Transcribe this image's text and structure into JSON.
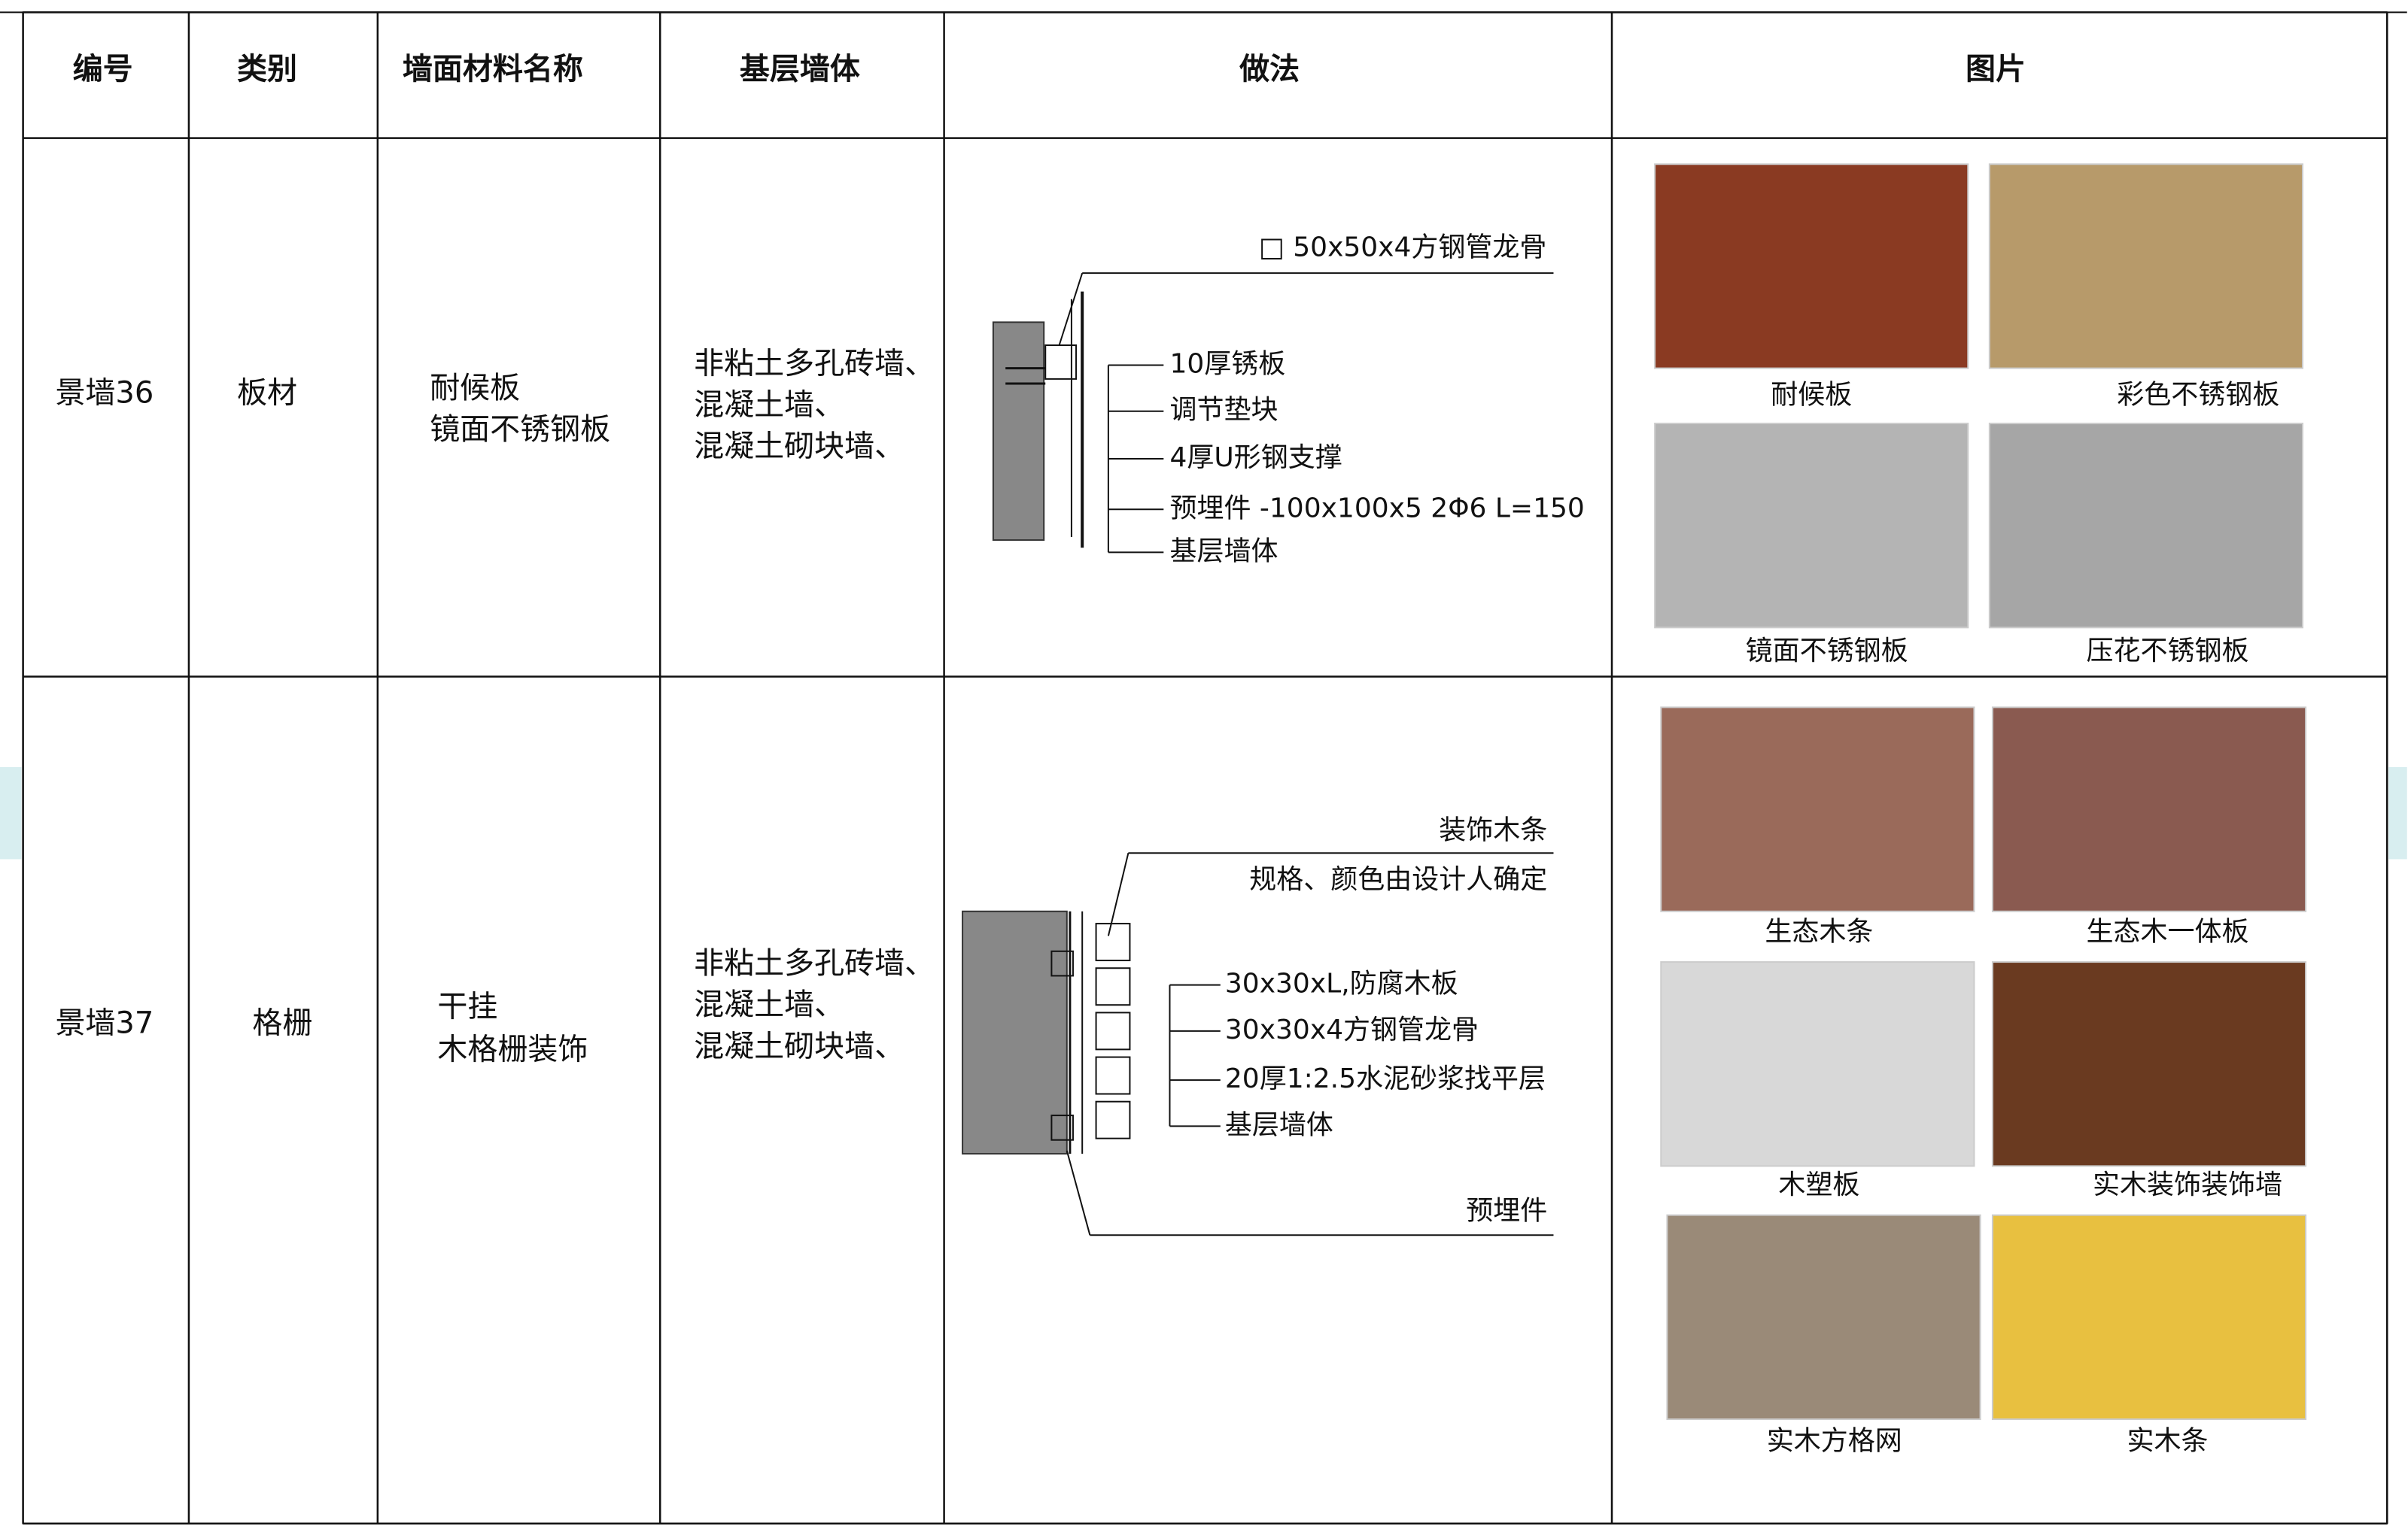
{
  "table": {
    "headers": [
      "编号",
      "类别",
      "墙面材料名称",
      "基层墙体",
      "做法",
      "图片"
    ],
    "rows": [
      {
        "number": "景墙36",
        "category": "板材",
        "material": [
          "耐候板",
          "镜面不锈钢板"
        ],
        "base_wall": [
          "非粘土多孔砖墙、",
          "混凝土墙、",
          "混凝土砌块墙、"
        ],
        "method": [
          "□  50x50x4方钢管龙骨",
          "10厚锈板",
          "调节垫块",
          "4厚U形钢支撑",
          "预埋件  -100x100x5  2Φ6  L=150",
          "基层墙体"
        ],
        "images": [
          {
            "caption": "耐候板"
          },
          {
            "caption": "彩色不锈钢板"
          },
          {
            "caption": "镜面不锈钢板"
          },
          {
            "caption": "压花不锈钢板"
          }
        ]
      },
      {
        "number": "景墙37",
        "category": "格栅",
        "material": [
          "干挂",
          "木格栅装饰"
        ],
        "base_wall": [
          "非粘土多孔砖墙、",
          "混凝土墙、",
          "混凝土砌块墙、"
        ],
        "method": [
          "装饰木条",
          "规格、颜色由设计人确定",
          "30x30xL,防腐木板",
          "30x30x4方钢管龙骨",
          "20厚1:2.5水泥砂浆找平层",
          "基层墙体",
          "预埋件"
        ],
        "images": [
          {
            "caption": "生态木条"
          },
          {
            "caption": "生态木一体板"
          },
          {
            "caption": "木塑板"
          },
          {
            "caption": "实木装饰装饰墙"
          },
          {
            "caption": "实木方格网"
          },
          {
            "caption": "实木条"
          }
        ]
      }
    ]
  }
}
